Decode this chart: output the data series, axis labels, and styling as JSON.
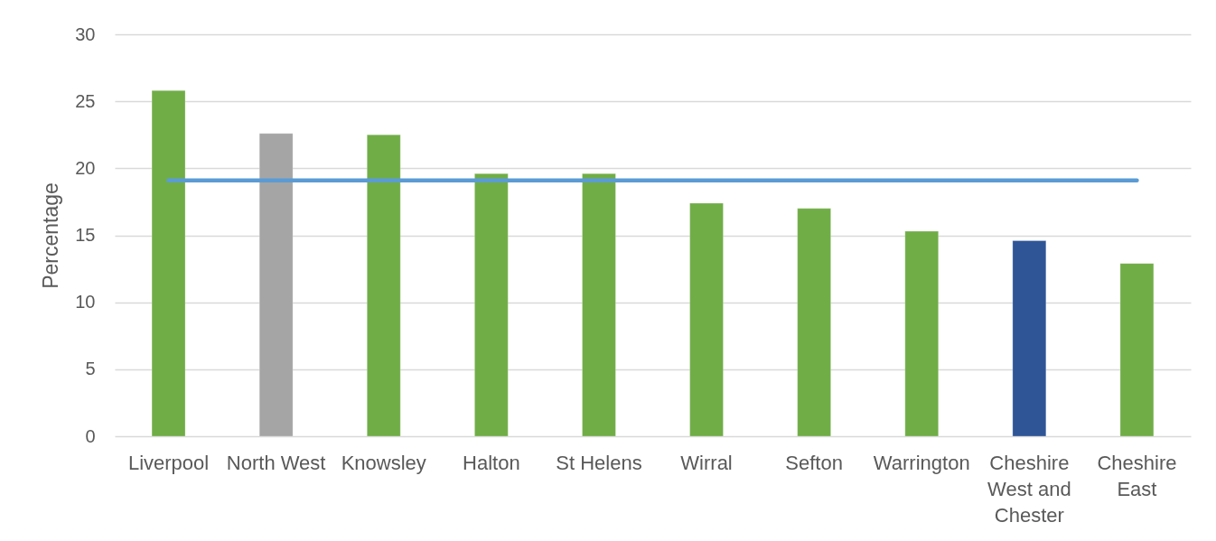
{
  "chart_data": {
    "type": "bar",
    "ylabel": "Percentage",
    "categories": [
      "Liverpool",
      "North West",
      "Knowsley",
      "Halton",
      "St Helens",
      "Wirral",
      "Sefton",
      "Warrington",
      "Cheshire West and Chester",
      "Cheshire East"
    ],
    "series": [
      {
        "colors": [
          "#70ad47",
          "#a5a5a5",
          "#70ad47",
          "#70ad47",
          "#70ad47",
          "#70ad47",
          "#70ad47",
          "#70ad47",
          "#2f5597",
          "#70ad47"
        ],
        "values": [
          25.8,
          22.6,
          22.5,
          19.6,
          19.6,
          17.4,
          17.0,
          15.3,
          14.6,
          12.9
        ]
      },
      {
        "type": "line",
        "color": "#5b9bd5",
        "values": [
          19.1,
          19.1,
          19.1,
          19.1,
          19.1,
          19.1,
          19.1,
          19.1,
          19.1,
          19.1
        ]
      }
    ],
    "ylim": [
      0,
      30
    ],
    "yticks": [
      0,
      5,
      10,
      15,
      20,
      25,
      30
    ],
    "grid": "y"
  }
}
